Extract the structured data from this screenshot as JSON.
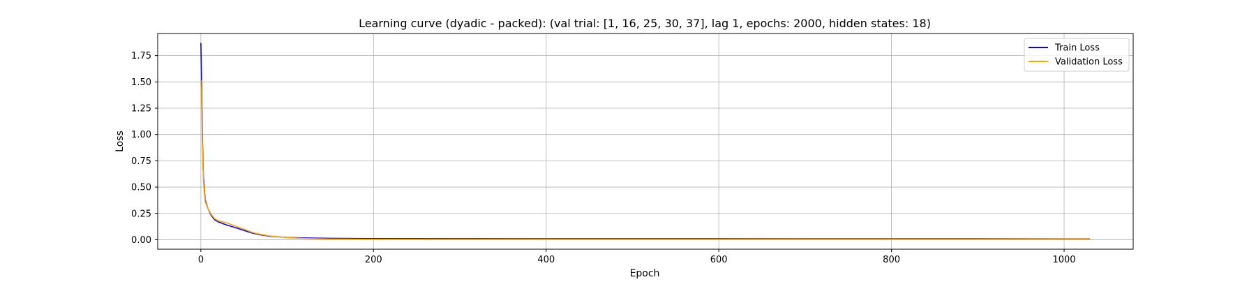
{
  "chart_data": {
    "type": "line",
    "title": "Learning curve (dyadic - packed): (val trial: [1, 16, 25, 30, 37], lag 1, epochs: 2000, hidden states: 18)",
    "xlabel": "Epoch",
    "ylabel": "Loss",
    "xlim": [
      -50,
      1080
    ],
    "ylim": [
      -0.09,
      1.96
    ],
    "xticks": [
      0,
      200,
      400,
      600,
      800,
      1000
    ],
    "yticks": [
      0.0,
      0.25,
      0.5,
      0.75,
      1.0,
      1.25,
      1.5,
      1.75
    ],
    "xtick_labels": [
      "0",
      "200",
      "400",
      "600",
      "800",
      "1000"
    ],
    "ytick_labels": [
      "0.00",
      "0.25",
      "0.50",
      "0.75",
      "1.00",
      "1.25",
      "1.50",
      "1.75"
    ],
    "grid": true,
    "legend_position": "top-right",
    "series": [
      {
        "name": "Train Loss",
        "color": "#0000ff",
        "x": [
          0,
          1,
          2,
          3,
          5,
          8,
          12,
          16,
          20,
          25,
          30,
          40,
          50,
          60,
          70,
          80,
          100,
          120,
          150,
          200,
          300,
          400,
          500,
          600,
          700,
          800,
          900,
          1000,
          1030
        ],
        "y": [
          1.87,
          1.4,
          0.9,
          0.6,
          0.38,
          0.3,
          0.23,
          0.19,
          0.17,
          0.155,
          0.14,
          0.115,
          0.088,
          0.062,
          0.045,
          0.033,
          0.022,
          0.017,
          0.013,
          0.011,
          0.01,
          0.009,
          0.009,
          0.009,
          0.008,
          0.008,
          0.008,
          0.007,
          0.007
        ]
      },
      {
        "name": "Validation Loss",
        "color": "#ffa500",
        "x": [
          0,
          1,
          2,
          3,
          5,
          8,
          12,
          16,
          20,
          25,
          30,
          40,
          50,
          60,
          70,
          80,
          100,
          120,
          150,
          200,
          300,
          400,
          500,
          600,
          700,
          800,
          900,
          1000,
          1030
        ],
        "y": [
          1.52,
          1.25,
          0.82,
          0.55,
          0.36,
          0.3,
          0.24,
          0.2,
          0.18,
          0.17,
          0.16,
          0.13,
          0.1,
          0.068,
          0.05,
          0.036,
          0.02,
          0.012,
          0.007,
          0.004,
          0.003,
          0.003,
          0.003,
          0.003,
          0.003,
          0.003,
          0.003,
          0.003,
          0.003
        ]
      }
    ]
  }
}
